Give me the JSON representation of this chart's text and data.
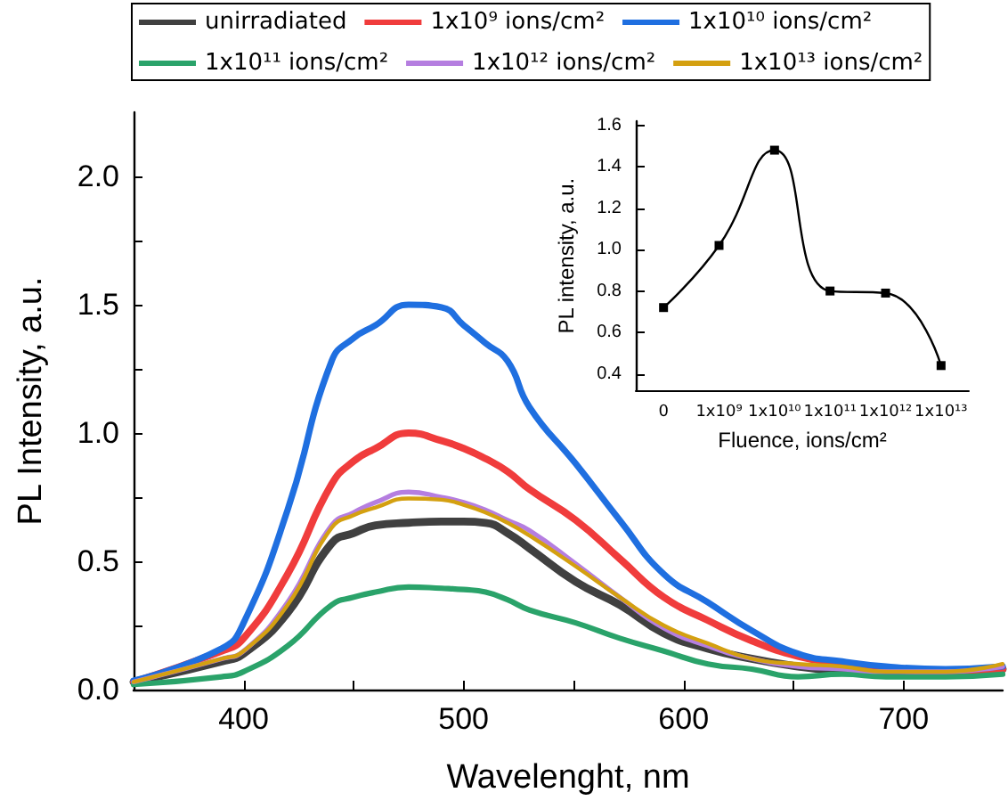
{
  "chart_data": [
    {
      "type": "line",
      "xlabel": "Wavelenght, nm",
      "ylabel": "PL Intensity, a.u.",
      "x": [
        350,
        390,
        400,
        420,
        440,
        450,
        460,
        475,
        490,
        500,
        510,
        520,
        530,
        551,
        571,
        591,
        611,
        631,
        652,
        672,
        692,
        719,
        745
      ],
      "series": [
        {
          "name": "unirradiated",
          "color": "#404040",
          "values": [
            0.03,
            0.11,
            0.14,
            0.3,
            0.57,
            0.61,
            0.64,
            0.65,
            0.655,
            0.655,
            0.65,
            0.61,
            0.55,
            0.42,
            0.33,
            0.22,
            0.16,
            0.12,
            0.09,
            0.07,
            0.06,
            0.06,
            0.08
          ]
        },
        {
          "name": "1x10⁹ ions/cm²",
          "color": "#f03c3c",
          "values": [
            0.03,
            0.15,
            0.2,
            0.45,
            0.8,
            0.89,
            0.94,
            1.0,
            0.97,
            0.94,
            0.9,
            0.85,
            0.78,
            0.66,
            0.51,
            0.36,
            0.27,
            0.19,
            0.13,
            0.1,
            0.08,
            0.07,
            0.08
          ]
        },
        {
          "name": "1x10¹⁰ ions/cm²",
          "color": "#1f6fe0",
          "values": [
            0.035,
            0.16,
            0.26,
            0.7,
            1.28,
            1.37,
            1.42,
            1.5,
            1.49,
            1.42,
            1.35,
            1.28,
            1.1,
            0.88,
            0.66,
            0.45,
            0.34,
            0.23,
            0.14,
            0.11,
            0.09,
            0.08,
            0.09
          ]
        },
        {
          "name": "1x10¹¹ ions/cm²",
          "color": "#2aa36a",
          "values": [
            0.02,
            0.05,
            0.07,
            0.17,
            0.33,
            0.36,
            0.38,
            0.4,
            0.395,
            0.39,
            0.38,
            0.35,
            0.31,
            0.26,
            0.2,
            0.15,
            0.1,
            0.08,
            0.05,
            0.06,
            0.05,
            0.05,
            0.06
          ]
        },
        {
          "name": "1x10¹² ions/cm²",
          "color": "#b57ee0",
          "values": [
            0.03,
            0.12,
            0.15,
            0.34,
            0.64,
            0.69,
            0.73,
            0.77,
            0.75,
            0.73,
            0.7,
            0.66,
            0.62,
            0.49,
            0.36,
            0.24,
            0.17,
            0.12,
            0.09,
            0.08,
            0.07,
            0.07,
            0.09
          ]
        },
        {
          "name": "1x10¹³ ions/cm²",
          "color": "#d4a010",
          "values": [
            0.03,
            0.12,
            0.15,
            0.33,
            0.63,
            0.68,
            0.71,
            0.745,
            0.74,
            0.72,
            0.69,
            0.65,
            0.6,
            0.48,
            0.36,
            0.25,
            0.18,
            0.12,
            0.1,
            0.09,
            0.07,
            0.07,
            0.1
          ]
        }
      ],
      "xlim": [
        350,
        745
      ],
      "xticks": [
        400,
        {
          "value": 450,
          "label": null
        },
        500,
        {
          "value": 550,
          "label": null
        },
        600,
        {
          "value": 650,
          "label": null
        },
        700
      ],
      "ylim": [
        0,
        2.25
      ],
      "yticks": [
        {
          "value": 0,
          "label": "0.0"
        },
        {
          "value": 0.25,
          "label": null
        },
        {
          "value": 0.5,
          "label": "0.5"
        },
        {
          "value": 0.75,
          "label": null
        },
        {
          "value": 1,
          "label": "1.0"
        },
        {
          "value": 1.25,
          "label": null
        },
        {
          "value": 1.5,
          "label": "1.5"
        },
        {
          "value": 1.75,
          "label": null
        },
        {
          "value": 2,
          "label": "2.0"
        }
      ],
      "legend": "top",
      "marker": "none",
      "line_style": "solid"
    },
    {
      "type": "line",
      "xlabel": "Fluence, ions/cm²",
      "ylabel": "PL intensity, a.u.",
      "categories": [
        "0",
        "1x10⁹",
        "1x10¹⁰",
        "1x10¹¹",
        "1x10¹²",
        "1x10¹³"
      ],
      "series": [
        {
          "color": "#000000",
          "values": [
            0.72,
            1.02,
            1.48,
            0.8,
            0.79,
            0.44
          ]
        }
      ],
      "ylim": [
        0.32,
        1.62
      ],
      "yticks": [
        {
          "value": 0.4,
          "label": "0.4"
        },
        {
          "value": 0.6,
          "label": "0.6"
        },
        {
          "value": 0.8,
          "label": "0.8"
        },
        {
          "value": 1.0,
          "label": "1.0"
        },
        {
          "value": 1.2,
          "label": "1.2"
        },
        {
          "value": 1.4,
          "label": "1.4"
        },
        {
          "value": 1.6,
          "label": "1.6"
        }
      ],
      "marker": "square",
      "line_style": "solid"
    }
  ]
}
